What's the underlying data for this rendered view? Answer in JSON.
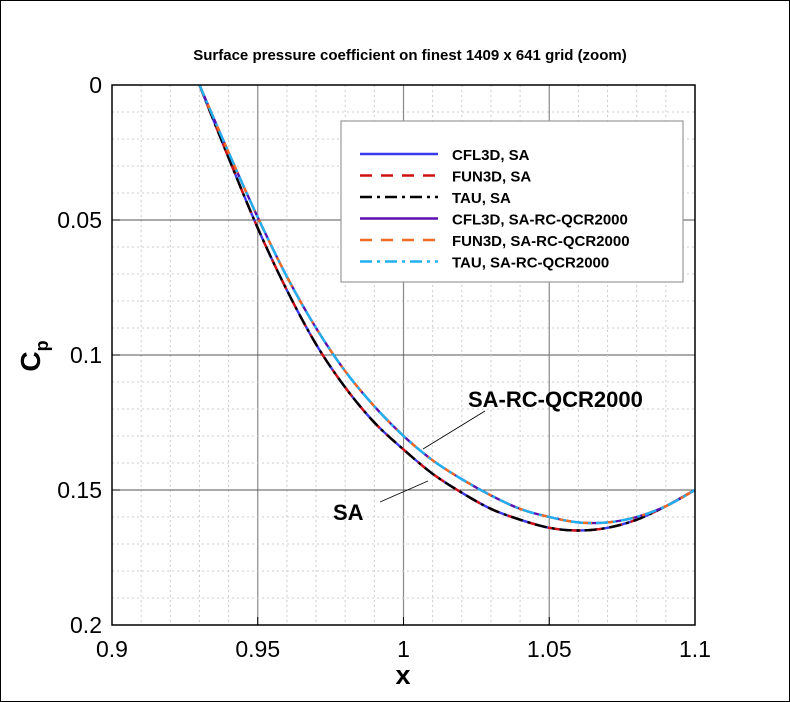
{
  "chart_data": {
    "type": "line",
    "title": "Surface pressure coefficient on finest 1409 x 641 grid (zoom)",
    "xlabel": "x",
    "ylabel": "C",
    "ylabel_sub": "p",
    "xlim": [
      0.9,
      1.1
    ],
    "ylim": [
      0,
      0.2
    ],
    "y_inverted": true,
    "grid": true,
    "xticks": [
      "0.9",
      "0.95",
      "1",
      "1.05",
      "1.1"
    ],
    "yticks": [
      "0",
      "0.05",
      "0.1",
      "0.15",
      "0.2"
    ],
    "legend_position": "top-right",
    "x": [
      0.93,
      0.94,
      0.95,
      0.96,
      0.97,
      0.98,
      0.99,
      1.0,
      1.01,
      1.02,
      1.03,
      1.04,
      1.05,
      1.06,
      1.07,
      1.08,
      1.09,
      1.1
    ],
    "series": [
      {
        "name": "CFL3D, SA",
        "color": "#3a3af0",
        "style": "solid",
        "values": [
          0,
          0.027,
          0.053,
          0.076,
          0.096,
          0.112,
          0.125,
          0.135,
          0.144,
          0.151,
          0.157,
          0.161,
          0.164,
          0.165,
          0.164,
          0.161,
          0.156,
          0.15
        ]
      },
      {
        "name": "FUN3D, SA",
        "color": "#d01010",
        "style": "dash",
        "values": [
          0,
          0.027,
          0.053,
          0.076,
          0.096,
          0.112,
          0.125,
          0.135,
          0.144,
          0.151,
          0.157,
          0.161,
          0.164,
          0.165,
          0.164,
          0.161,
          0.156,
          0.15
        ]
      },
      {
        "name": "TAU, SA",
        "color": "#000000",
        "style": "dashdot",
        "values": [
          0,
          0.027,
          0.053,
          0.076,
          0.096,
          0.112,
          0.125,
          0.135,
          0.144,
          0.151,
          0.157,
          0.161,
          0.164,
          0.165,
          0.164,
          0.161,
          0.156,
          0.15
        ]
      },
      {
        "name": "CFL3D, SA-RC-QCR2000",
        "color": "#5a10b0",
        "style": "solid",
        "values": [
          0,
          0.025,
          0.049,
          0.071,
          0.09,
          0.106,
          0.119,
          0.13,
          0.139,
          0.146,
          0.152,
          0.157,
          0.16,
          0.162,
          0.162,
          0.16,
          0.156,
          0.15
        ]
      },
      {
        "name": "FUN3D, SA-RC-QCR2000",
        "color": "#f06a20",
        "style": "dash",
        "values": [
          0,
          0.025,
          0.049,
          0.071,
          0.09,
          0.106,
          0.119,
          0.13,
          0.139,
          0.146,
          0.152,
          0.157,
          0.16,
          0.162,
          0.162,
          0.16,
          0.156,
          0.15
        ]
      },
      {
        "name": "TAU, SA-RC-QCR2000",
        "color": "#20b0f0",
        "style": "dashdot",
        "values": [
          0,
          0.025,
          0.049,
          0.071,
          0.09,
          0.106,
          0.119,
          0.13,
          0.139,
          0.146,
          0.152,
          0.157,
          0.16,
          0.162,
          0.162,
          0.16,
          0.156,
          0.15
        ]
      }
    ],
    "annotations": [
      {
        "text": "SA-RC-QCR2000",
        "points_to": [
          1.013,
          0.135
        ]
      },
      {
        "text": "SA",
        "points_to": [
          1.018,
          0.146
        ]
      }
    ]
  }
}
